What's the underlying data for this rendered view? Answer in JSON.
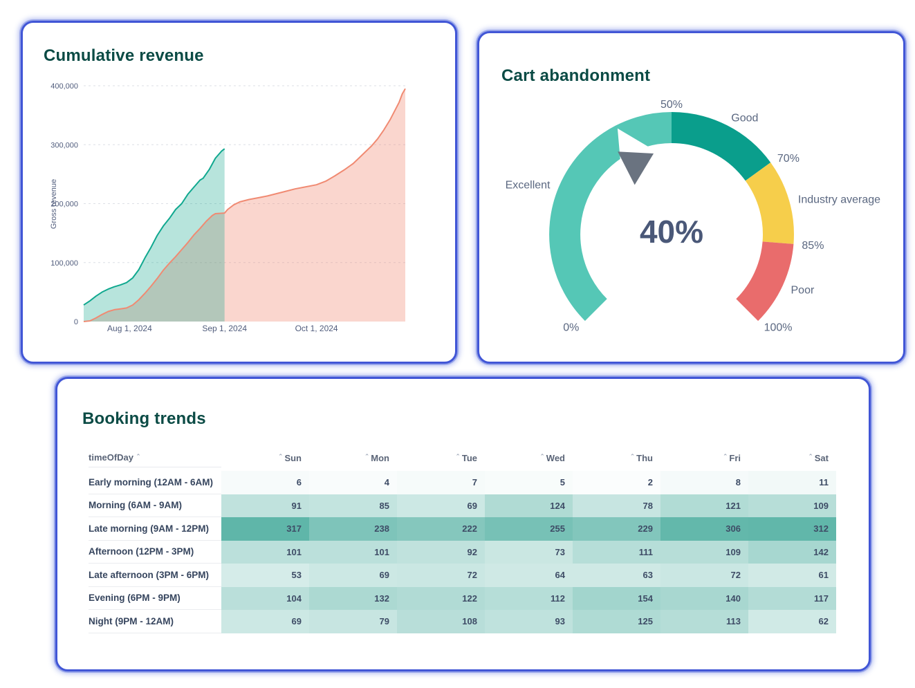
{
  "page": {
    "background": "#ffffff",
    "card_border_color": "#4156d6"
  },
  "chart_data": [
    {
      "id": "cumulative_revenue",
      "type": "area",
      "title": "Cumulative revenue",
      "ylabel": "Gross revenue",
      "ylim": [
        0,
        400000
      ],
      "grid": "dashed-horizontal",
      "legend": "none",
      "yticks": [
        {
          "value": 0,
          "label": "0"
        },
        {
          "value": 100000,
          "label": "100,000"
        },
        {
          "value": 200000,
          "label": "200,000"
        },
        {
          "value": 300000,
          "label": "300,000"
        },
        {
          "value": 400000,
          "label": "400,000"
        }
      ],
      "x_days_span": 105,
      "xticks": [
        {
          "day": 15,
          "label": "Aug 1, 2024"
        },
        {
          "day": 46,
          "label": "Sep 1, 2024"
        },
        {
          "day": 76,
          "label": "Oct 1, 2024"
        }
      ],
      "series": [
        {
          "name": "previous-period",
          "line_color": "#f08a72",
          "fill_color": "rgba(240,138,114,0.35)",
          "points": [
            [
              0,
              0
            ],
            [
              2,
              1000
            ],
            [
              4,
              6000
            ],
            [
              6,
              12000
            ],
            [
              8,
              17000
            ],
            [
              10,
              20000
            ],
            [
              12,
              21500
            ],
            [
              14,
              23000
            ],
            [
              16,
              28000
            ],
            [
              18,
              37000
            ],
            [
              20,
              48000
            ],
            [
              22,
              60000
            ],
            [
              24,
              73000
            ],
            [
              26,
              87000
            ],
            [
              28,
              99000
            ],
            [
              30,
              110000
            ],
            [
              32,
              122000
            ],
            [
              34,
              134000
            ],
            [
              36,
              147000
            ],
            [
              38,
              158000
            ],
            [
              40,
              170000
            ],
            [
              42,
              180000
            ],
            [
              43,
              183000
            ],
            [
              46,
              184000
            ],
            [
              47,
              190000
            ],
            [
              49,
              198000
            ],
            [
              51,
              203000
            ],
            [
              54,
              207000
            ],
            [
              57,
              210000
            ],
            [
              60,
              213000
            ],
            [
              63,
              217000
            ],
            [
              66,
              221000
            ],
            [
              69,
              225000
            ],
            [
              72,
              228000
            ],
            [
              76,
              232000
            ],
            [
              79,
              238000
            ],
            [
              82,
              247000
            ],
            [
              85,
              257000
            ],
            [
              88,
              268000
            ],
            [
              90,
              278000
            ],
            [
              92,
              288000
            ],
            [
              94,
              298000
            ],
            [
              96,
              310000
            ],
            [
              98,
              325000
            ],
            [
              100,
              342000
            ],
            [
              102,
              362000
            ],
            [
              103,
              372000
            ],
            [
              104,
              386000
            ],
            [
              105,
              395000
            ]
          ]
        },
        {
          "name": "current-period",
          "line_color": "#10a88f",
          "fill_color": "rgba(18,166,140,0.30)",
          "points": [
            [
              0,
              28000
            ],
            [
              2,
              35000
            ],
            [
              4,
              43000
            ],
            [
              6,
              50000
            ],
            [
              8,
              55000
            ],
            [
              10,
              59000
            ],
            [
              12,
              62000
            ],
            [
              14,
              66000
            ],
            [
              16,
              74000
            ],
            [
              18,
              88000
            ],
            [
              20,
              108000
            ],
            [
              22,
              126000
            ],
            [
              24,
              146000
            ],
            [
              26,
              162000
            ],
            [
              28,
              175000
            ],
            [
              30,
              190000
            ],
            [
              32,
              200000
            ],
            [
              34,
              216000
            ],
            [
              36,
              228000
            ],
            [
              38,
              240000
            ],
            [
              39,
              243000
            ],
            [
              41,
              258000
            ],
            [
              43,
              277000
            ],
            [
              45,
              289000
            ],
            [
              46,
              293000
            ]
          ]
        }
      ]
    },
    {
      "id": "cart_abandonment",
      "type": "gauge",
      "title": "Cart abandonment",
      "value": 40,
      "value_label": "40%",
      "min": 0,
      "max": 100,
      "start_angle": -135,
      "end_angle": 135,
      "needle_color": "#6a7380",
      "segments": [
        {
          "name": "Excellent",
          "from": 0,
          "to": 50,
          "color": "#55c7b6"
        },
        {
          "name": "Good",
          "from": 50,
          "to": 70,
          "color": "#0a9e8c"
        },
        {
          "name": "Industry average",
          "from": 70,
          "to": 85,
          "color": "#f6ce4b"
        },
        {
          "name": "Poor",
          "from": 85,
          "to": 100,
          "color": "#e96c6c"
        }
      ],
      "ticks": [
        {
          "value": 0,
          "label": "0%"
        },
        {
          "value": 50,
          "label": "50%"
        },
        {
          "value": 70,
          "label": "70%"
        },
        {
          "value": 85,
          "label": "85%"
        },
        {
          "value": 100,
          "label": "100%"
        }
      ]
    },
    {
      "id": "booking_trends",
      "type": "heatmap",
      "title": "Booking trends",
      "row_header": "timeOfDay",
      "sort_caret": "ˆ",
      "columns": [
        "Sun",
        "Mon",
        "Tue",
        "Wed",
        "Thu",
        "Fri",
        "Sat"
      ],
      "rows": [
        {
          "label": "Early morning (12AM - 6AM)",
          "values": [
            6,
            4,
            7,
            5,
            2,
            8,
            11
          ]
        },
        {
          "label": "Morning (6AM - 9AM)",
          "values": [
            91,
            85,
            69,
            124,
            78,
            121,
            109
          ]
        },
        {
          "label": "Late morning (9AM - 12PM)",
          "values": [
            317,
            238,
            222,
            255,
            229,
            306,
            312
          ]
        },
        {
          "label": "Afternoon (12PM - 3PM)",
          "values": [
            101,
            101,
            92,
            73,
            111,
            109,
            142
          ]
        },
        {
          "label": "Late afternoon (3PM - 6PM)",
          "values": [
            53,
            69,
            72,
            64,
            63,
            72,
            61
          ]
        },
        {
          "label": "Evening (6PM - 9PM)",
          "values": [
            104,
            132,
            122,
            112,
            154,
            140,
            117
          ]
        },
        {
          "label": "Night (9PM - 12AM)",
          "values": [
            69,
            79,
            108,
            93,
            125,
            113,
            62
          ]
        }
      ],
      "min_color": "#ffffff",
      "max_color": "#5fb6a9",
      "max_value": 317
    }
  ]
}
